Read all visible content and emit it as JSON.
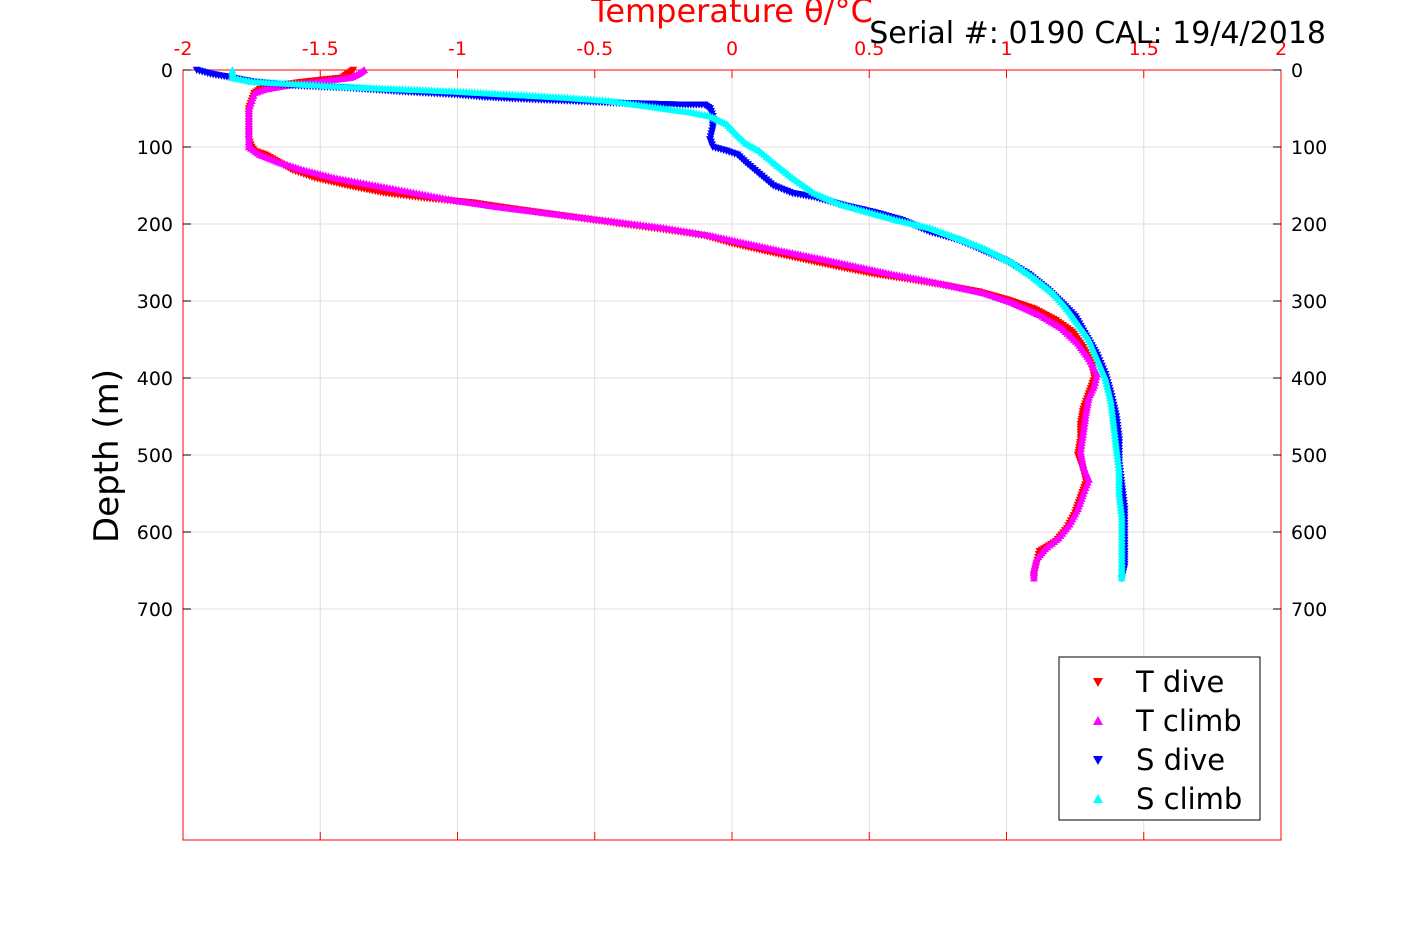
{
  "colors": {
    "t_dive": "#ff0000",
    "t_climb": "#ff00ff",
    "s_dive": "#0000ff",
    "s_climb": "#00ffff",
    "top_axis": "#ff0000",
    "grid": "#e8d9de",
    "text": "#000000"
  },
  "chart_data": {
    "type": "scatter",
    "title": "Temperature θ/°C",
    "annotation": "Serial #: 0190  CAL: 19/4/2018",
    "ylabel": "Depth (m)",
    "xlim": [
      -2,
      2
    ],
    "ylim": [
      0,
      1000
    ],
    "y_reversed": true,
    "grid": true,
    "legend_position": "bottom-right",
    "x_ticks": [
      "-2",
      "-1.5",
      "-1",
      "-0.5",
      "0",
      "0.5",
      "1",
      "1.5",
      "2"
    ],
    "y_ticks": [
      "0",
      "100",
      "200",
      "300",
      "400",
      "500",
      "600",
      "700"
    ],
    "series": [
      {
        "name": "T dive",
        "marker": "triangle-down",
        "points": [
          [
            -1.38,
            0
          ],
          [
            -1.4,
            5
          ],
          [
            -1.42,
            10
          ],
          [
            -1.55,
            15
          ],
          [
            -1.66,
            20
          ],
          [
            -1.72,
            25
          ],
          [
            -1.74,
            30
          ],
          [
            -1.75,
            40
          ],
          [
            -1.76,
            50
          ],
          [
            -1.76,
            60
          ],
          [
            -1.76,
            70
          ],
          [
            -1.76,
            80
          ],
          [
            -1.76,
            90
          ],
          [
            -1.75,
            100
          ],
          [
            -1.74,
            105
          ],
          [
            -1.7,
            110
          ],
          [
            -1.65,
            120
          ],
          [
            -1.6,
            130
          ],
          [
            -1.52,
            140
          ],
          [
            -1.4,
            150
          ],
          [
            -1.26,
            160
          ],
          [
            -1.1,
            167
          ],
          [
            -0.95,
            172
          ],
          [
            -0.8,
            180
          ],
          [
            -0.6,
            190
          ],
          [
            -0.4,
            200
          ],
          [
            -0.25,
            207
          ],
          [
            -0.1,
            215
          ],
          [
            0.0,
            225
          ],
          [
            0.12,
            235
          ],
          [
            0.25,
            245
          ],
          [
            0.38,
            255
          ],
          [
            0.52,
            265
          ],
          [
            0.65,
            272
          ],
          [
            0.78,
            280
          ],
          [
            0.9,
            288
          ],
          [
            1.0,
            298
          ],
          [
            1.1,
            310
          ],
          [
            1.18,
            325
          ],
          [
            1.24,
            340
          ],
          [
            1.28,
            360
          ],
          [
            1.31,
            380
          ],
          [
            1.32,
            400
          ],
          [
            1.3,
            420
          ],
          [
            1.28,
            440
          ],
          [
            1.27,
            460
          ],
          [
            1.27,
            480
          ],
          [
            1.26,
            500
          ],
          [
            1.28,
            520
          ],
          [
            1.29,
            535
          ],
          [
            1.27,
            555
          ],
          [
            1.25,
            575
          ],
          [
            1.22,
            595
          ],
          [
            1.18,
            612
          ],
          [
            1.12,
            625
          ],
          [
            1.11,
            640
          ],
          [
            1.1,
            655
          ],
          [
            1.1,
            660
          ]
        ]
      },
      {
        "name": "T climb",
        "marker": "triangle-up",
        "points": [
          [
            -1.34,
            0
          ],
          [
            -1.36,
            5
          ],
          [
            -1.39,
            10
          ],
          [
            -1.5,
            15
          ],
          [
            -1.62,
            20
          ],
          [
            -1.7,
            25
          ],
          [
            -1.74,
            30
          ],
          [
            -1.75,
            40
          ],
          [
            -1.76,
            50
          ],
          [
            -1.76,
            60
          ],
          [
            -1.76,
            70
          ],
          [
            -1.76,
            80
          ],
          [
            -1.76,
            90
          ],
          [
            -1.76,
            100
          ],
          [
            -1.72,
            110
          ],
          [
            -1.65,
            120
          ],
          [
            -1.56,
            130
          ],
          [
            -1.45,
            140
          ],
          [
            -1.3,
            150
          ],
          [
            -1.15,
            160
          ],
          [
            -1.0,
            170
          ],
          [
            -0.85,
            178
          ],
          [
            -0.65,
            187
          ],
          [
            -0.45,
            196
          ],
          [
            -0.25,
            205
          ],
          [
            -0.08,
            215
          ],
          [
            0.05,
            225
          ],
          [
            0.18,
            235
          ],
          [
            0.32,
            245
          ],
          [
            0.45,
            255
          ],
          [
            0.58,
            265
          ],
          [
            0.7,
            273
          ],
          [
            0.82,
            282
          ],
          [
            0.92,
            290
          ],
          [
            1.02,
            302
          ],
          [
            1.12,
            318
          ],
          [
            1.2,
            335
          ],
          [
            1.26,
            355
          ],
          [
            1.3,
            375
          ],
          [
            1.33,
            395
          ],
          [
            1.32,
            410
          ],
          [
            1.3,
            425
          ],
          [
            1.29,
            445
          ],
          [
            1.28,
            470
          ],
          [
            1.27,
            495
          ],
          [
            1.28,
            515
          ],
          [
            1.3,
            532
          ],
          [
            1.28,
            550
          ],
          [
            1.26,
            570
          ],
          [
            1.23,
            590
          ],
          [
            1.19,
            608
          ],
          [
            1.14,
            622
          ],
          [
            1.11,
            635
          ],
          [
            1.1,
            650
          ],
          [
            1.1,
            660
          ]
        ]
      },
      {
        "name": "S dive",
        "marker": "triangle-down",
        "points": [
          [
            -1.95,
            0
          ],
          [
            -1.9,
            5
          ],
          [
            -1.82,
            10
          ],
          [
            -1.75,
            15
          ],
          [
            -1.6,
            20
          ],
          [
            -1.4,
            23
          ],
          [
            -1.2,
            28
          ],
          [
            -1.0,
            32
          ],
          [
            -0.9,
            35
          ],
          [
            -0.8,
            37
          ],
          [
            -0.6,
            40
          ],
          [
            -0.4,
            43
          ],
          [
            -0.2,
            45
          ],
          [
            -0.1,
            45
          ],
          [
            -0.08,
            50
          ],
          [
            -0.07,
            60
          ],
          [
            -0.07,
            75
          ],
          [
            -0.08,
            90
          ],
          [
            -0.07,
            100
          ],
          [
            -0.02,
            105
          ],
          [
            0.02,
            110
          ],
          [
            0.05,
            120
          ],
          [
            0.1,
            135
          ],
          [
            0.15,
            150
          ],
          [
            0.22,
            160
          ],
          [
            0.3,
            165
          ],
          [
            0.4,
            175
          ],
          [
            0.52,
            185
          ],
          [
            0.62,
            195
          ],
          [
            0.72,
            210
          ],
          [
            0.82,
            220
          ],
          [
            0.9,
            232
          ],
          [
            1.0,
            248
          ],
          [
            1.08,
            265
          ],
          [
            1.15,
            285
          ],
          [
            1.2,
            302
          ],
          [
            1.25,
            320
          ],
          [
            1.29,
            345
          ],
          [
            1.33,
            370
          ],
          [
            1.36,
            395
          ],
          [
            1.38,
            420
          ],
          [
            1.4,
            450
          ],
          [
            1.41,
            480
          ],
          [
            1.41,
            510
          ],
          [
            1.42,
            540
          ],
          [
            1.43,
            570
          ],
          [
            1.43,
            600
          ],
          [
            1.43,
            625
          ],
          [
            1.43,
            645
          ],
          [
            1.42,
            660
          ]
        ]
      },
      {
        "name": "S climb",
        "marker": "triangle-up",
        "points": [
          [
            -1.82,
            0
          ],
          [
            -1.82,
            10
          ],
          [
            -1.75,
            15
          ],
          [
            -1.6,
            18
          ],
          [
            -1.4,
            22
          ],
          [
            -1.2,
            25
          ],
          [
            -1.0,
            28
          ],
          [
            -0.8,
            32
          ],
          [
            -0.6,
            36
          ],
          [
            -0.45,
            40
          ],
          [
            -0.35,
            45
          ],
          [
            -0.25,
            50
          ],
          [
            -0.15,
            55
          ],
          [
            -0.08,
            60
          ],
          [
            -0.02,
            70
          ],
          [
            0.02,
            85
          ],
          [
            0.05,
            95
          ],
          [
            0.1,
            105
          ],
          [
            0.15,
            120
          ],
          [
            0.22,
            140
          ],
          [
            0.3,
            160
          ],
          [
            0.4,
            175
          ],
          [
            0.5,
            185
          ],
          [
            0.6,
            195
          ],
          [
            0.72,
            205
          ],
          [
            0.82,
            218
          ],
          [
            0.92,
            232
          ],
          [
            1.02,
            250
          ],
          [
            1.1,
            270
          ],
          [
            1.17,
            290
          ],
          [
            1.22,
            310
          ],
          [
            1.26,
            330
          ],
          [
            1.3,
            350
          ],
          [
            1.33,
            375
          ],
          [
            1.36,
            400
          ],
          [
            1.38,
            430
          ],
          [
            1.39,
            460
          ],
          [
            1.4,
            490
          ],
          [
            1.41,
            520
          ],
          [
            1.41,
            550
          ],
          [
            1.42,
            580
          ],
          [
            1.42,
            610
          ],
          [
            1.42,
            640
          ],
          [
            1.42,
            660
          ]
        ]
      }
    ]
  }
}
